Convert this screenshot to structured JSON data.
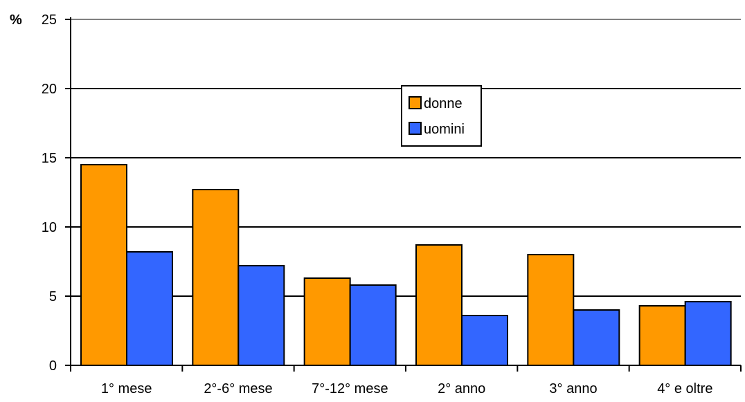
{
  "chart_data": {
    "type": "bar",
    "title": "",
    "xlabel": "",
    "ylabel": "%",
    "ylim": [
      0,
      25
    ],
    "yticks": [
      0,
      5,
      10,
      15,
      20,
      25
    ],
    "grid": true,
    "legend_position": "center-top",
    "categories": [
      "1° mese",
      "2°-6° mese",
      "7°-12° mese",
      "2° anno",
      "3° anno",
      "4° e oltre"
    ],
    "series": [
      {
        "name": "donne",
        "color": "#FF9900",
        "values": [
          14.5,
          12.7,
          6.3,
          8.7,
          8.0,
          4.3
        ]
      },
      {
        "name": "uomini",
        "color": "#3366FF",
        "values": [
          8.2,
          7.2,
          5.8,
          3.6,
          4.0,
          4.6
        ]
      }
    ]
  }
}
